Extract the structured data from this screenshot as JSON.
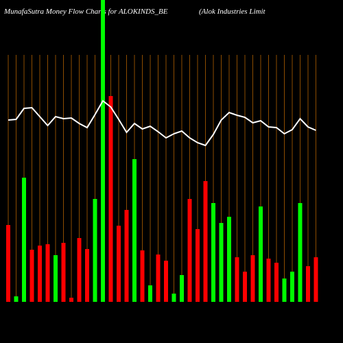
{
  "chart_data": {
    "type": "bar",
    "title": "MunafaSutra  Money Flow  Charts for ALOKINDS_BE",
    "subtitle": "(Alok Industries Limit",
    "categories": [
      null,
      null,
      null,
      null,
      null,
      null,
      null,
      null,
      null,
      null,
      null,
      null,
      null,
      null,
      null,
      null,
      null,
      null,
      null,
      null,
      null,
      null,
      null,
      null,
      null,
      null,
      null,
      null,
      null,
      null,
      null,
      null,
      null,
      null,
      null,
      null,
      null,
      null,
      null,
      null
    ],
    "values": [
      112,
      8,
      181,
      76,
      82,
      84,
      68,
      86,
      6,
      93,
      77,
      150,
      460,
      300,
      111,
      134,
      208,
      75,
      24,
      69,
      60,
      12,
      39,
      150,
      106,
      176,
      144,
      115,
      124,
      65,
      44,
      68,
      139,
      63,
      57,
      34,
      44,
      144,
      52,
      65
    ],
    "bar_colors": [
      "#ff0000",
      "#00ff00",
      "#00ff00",
      "#ff0000",
      "#ff0000",
      "#ff0000",
      "#00ff00",
      "#ff0000",
      "#ff0000",
      "#ff0000",
      "#ff0000",
      "#00ff00",
      "#00ff00",
      "#ff0000",
      "#ff0000",
      "#ff0000",
      "#00ff00",
      "#ff0000",
      "#00ff00",
      "#ff0000",
      "#ff0000",
      "#00ff00",
      "#00ff00",
      "#ff0000",
      "#ff0000",
      "#ff0000",
      "#00ff00",
      "#00ff00",
      "#00ff00",
      "#ff0000",
      "#ff0000",
      "#ff0000",
      "#00ff00",
      "#ff0000",
      "#ff0000",
      "#00ff00",
      "#00ff00",
      "#00ff00",
      "#ff0000",
      "#ff0000"
    ],
    "line": {
      "color": "#ffffff",
      "values": [
        265,
        266,
        282,
        283,
        270,
        257,
        270,
        267,
        268,
        260,
        254,
        273,
        293,
        284,
        266,
        247,
        260,
        252,
        256,
        248,
        239,
        245,
        249,
        239,
        232,
        228,
        244,
        265,
        276,
        272,
        269,
        261,
        264,
        255,
        254,
        245,
        251,
        267,
        255,
        250
      ]
    },
    "ylim": [
      0,
      440
    ],
    "grid_color": "#b06000"
  }
}
